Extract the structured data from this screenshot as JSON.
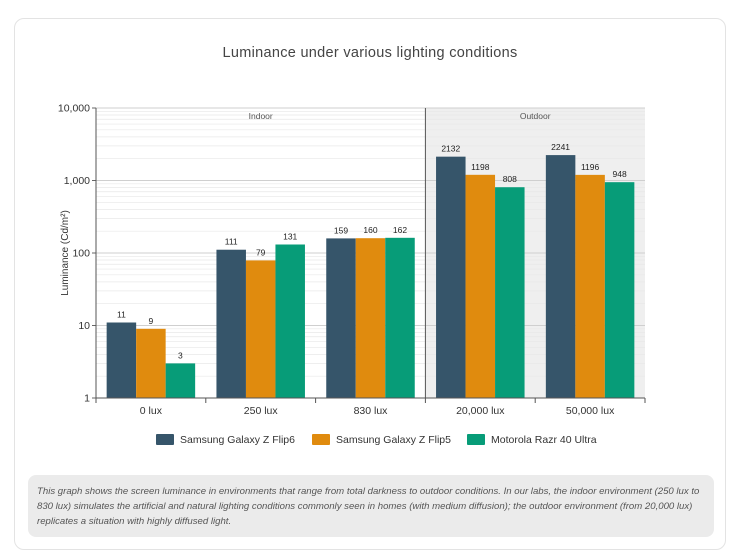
{
  "chart_data": {
    "type": "bar",
    "title": "Luminance under various lighting conditions",
    "ylabel": "Luminance (Cd/m²)",
    "xlabel": "",
    "yscale": "log",
    "ylim": [
      1,
      10000
    ],
    "yticks": [
      1,
      10,
      100,
      1000,
      10000
    ],
    "ytick_labels": [
      "1",
      "10",
      "100",
      "1,000",
      "10,000"
    ],
    "categories": [
      "0 lux",
      "250 lux",
      "830 lux",
      "20,000 lux",
      "50,000 lux"
    ],
    "series": [
      {
        "name": "Samsung Galaxy Z Flip6",
        "color": "#36556a",
        "values": [
          11,
          111,
          159,
          2132,
          2241
        ]
      },
      {
        "name": "Samsung Galaxy Z Flip5",
        "color": "#e08b0e",
        "values": [
          9,
          79,
          160,
          1198,
          1196
        ]
      },
      {
        "name": "Motorola Razr 40 Ultra",
        "color": "#079c78",
        "values": [
          3,
          131,
          162,
          808,
          948
        ]
      }
    ],
    "value_labels": [
      [
        "11",
        "111",
        "159",
        "2132",
        "2241"
      ],
      [
        "9",
        "79",
        "160",
        "1198",
        "1196"
      ],
      [
        "3",
        "131",
        "162",
        "808",
        "948"
      ]
    ],
    "regions": [
      {
        "label": "Indoor",
        "categories": [
          0,
          1,
          2
        ],
        "shaded": false
      },
      {
        "label": "Outdoor",
        "categories": [
          3,
          4
        ],
        "shaded": true
      }
    ],
    "legend_position": "bottom",
    "grid": true
  },
  "caption": "This graph shows the screen luminance in environments that range from total darkness to outdoor conditions. In our labs, the indoor environment (250 lux to 830 lux) simulates the artificial and natural lighting conditions commonly seen in homes (with medium diffusion); the outdoor environment (from 20,000 lux) replicates a situation with highly diffused light."
}
